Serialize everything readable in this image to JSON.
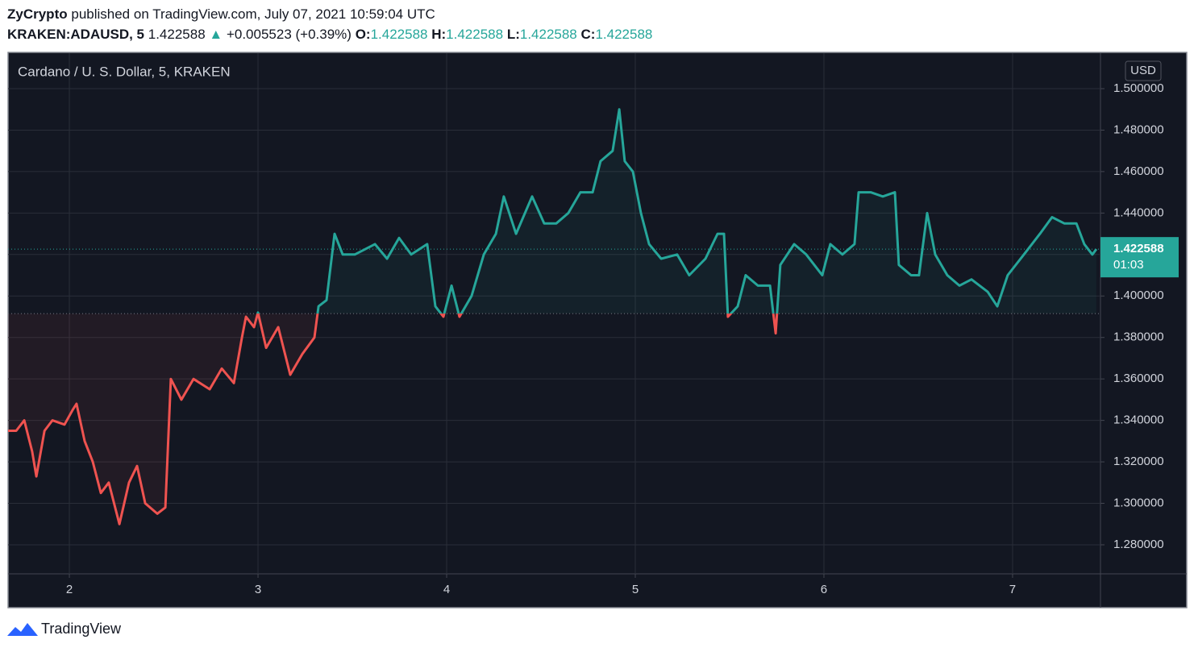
{
  "header": {
    "publisher": "ZyCrypto",
    "published": "published on TradingView.com, July 07, 2021 10:59:04 UTC",
    "symbol": "KRAKEN:ADAUSD, 5",
    "price": 1.422588,
    "change": "+0.005523 (+0.39%)",
    "ohlc": [
      {
        "label": "O:",
        "value": 1.422588
      },
      {
        "label": "H:",
        "value": 1.422588
      },
      {
        "label": "L:",
        "value": 1.422588
      },
      {
        "label": "C:",
        "value": 1.422588
      }
    ]
  },
  "footer": {
    "brand": "TradingView"
  },
  "chart_data": {
    "type": "line",
    "title": "Cardano / U. S. Dollar, 5, KRAKEN",
    "currency": "USD",
    "x": [
      1.675,
      1.718,
      1.761,
      1.803,
      1.825,
      1.868,
      1.91,
      1.974,
      2.017,
      2.038,
      2.081,
      2.124,
      2.167,
      2.209,
      2.265,
      2.316,
      2.359,
      2.402,
      2.466,
      2.509,
      2.538,
      2.594,
      2.658,
      2.744,
      2.808,
      2.872,
      2.915,
      2.936,
      2.979,
      3.0,
      3.043,
      3.107,
      3.171,
      3.235,
      3.299,
      3.321,
      3.363,
      3.406,
      3.449,
      3.513,
      3.62,
      3.684,
      3.748,
      3.812,
      3.897,
      3.94,
      3.983,
      4.026,
      4.068,
      4.132,
      4.197,
      4.261,
      4.303,
      4.368,
      4.453,
      4.517,
      4.581,
      4.645,
      4.709,
      4.774,
      4.816,
      4.88,
      4.915,
      4.944,
      4.987,
      5.03,
      5.073,
      5.137,
      5.222,
      5.286,
      5.372,
      5.436,
      5.47,
      5.491,
      5.543,
      5.585,
      5.65,
      5.714,
      5.744,
      5.769,
      5.842,
      5.906,
      5.991,
      6.034,
      6.098,
      6.162,
      6.184,
      6.248,
      6.312,
      6.376,
      6.397,
      6.462,
      6.504,
      6.547,
      6.59,
      6.654,
      6.718,
      6.782,
      6.868,
      6.919,
      6.974,
      7.06,
      7.145,
      7.209,
      7.274,
      7.338,
      7.38,
      7.423,
      7.444
    ],
    "values": [
      1.335,
      1.335,
      1.34,
      1.325,
      1.313,
      1.335,
      1.34,
      1.338,
      1.345,
      1.348,
      1.33,
      1.32,
      1.305,
      1.31,
      1.29,
      1.31,
      1.318,
      1.3,
      1.295,
      1.298,
      1.36,
      1.35,
      1.36,
      1.355,
      1.365,
      1.358,
      1.38,
      1.39,
      1.385,
      1.392,
      1.375,
      1.385,
      1.362,
      1.372,
      1.38,
      1.395,
      1.398,
      1.43,
      1.42,
      1.42,
      1.425,
      1.418,
      1.428,
      1.42,
      1.425,
      1.395,
      1.39,
      1.405,
      1.39,
      1.4,
      1.42,
      1.43,
      1.448,
      1.43,
      1.448,
      1.435,
      1.435,
      1.44,
      1.45,
      1.45,
      1.465,
      1.47,
      1.49,
      1.465,
      1.46,
      1.44,
      1.425,
      1.418,
      1.42,
      1.41,
      1.418,
      1.43,
      1.43,
      1.39,
      1.395,
      1.41,
      1.405,
      1.405,
      1.382,
      1.415,
      1.425,
      1.42,
      1.41,
      1.425,
      1.42,
      1.425,
      1.45,
      1.45,
      1.448,
      1.45,
      1.415,
      1.41,
      1.41,
      1.44,
      1.42,
      1.41,
      1.405,
      1.408,
      1.402,
      1.395,
      1.41,
      1.42,
      1.43,
      1.438,
      1.435,
      1.435,
      1.425,
      1.42,
      1.422588
    ],
    "color_up": "#26a69a",
    "color_down": "#ef5350",
    "baseline": 1.3915,
    "last_value": 1.422588,
    "countdown": "01:03",
    "xlim": [
      1.675,
      7.466
    ],
    "ylim": [
      1.266,
      1.5171
    ],
    "xticks": [
      2,
      3,
      4,
      5,
      6,
      7
    ],
    "yticks": [
      {
        "value": 1.28,
        "label": "1.280000"
      },
      {
        "value": 1.3,
        "label": "1.300000"
      },
      {
        "value": 1.32,
        "label": "1.320000"
      },
      {
        "value": 1.34,
        "label": "1.340000"
      },
      {
        "value": 1.36,
        "label": "1.360000"
      },
      {
        "value": 1.38,
        "label": "1.380000"
      },
      {
        "value": 1.4,
        "label": "1.400000"
      },
      {
        "value": 1.42,
        "label": "1.420000"
      },
      {
        "value": 1.44,
        "label": "1.440000"
      },
      {
        "value": 1.46,
        "label": "1.460000"
      },
      {
        "value": 1.48,
        "label": "1.480000"
      },
      {
        "value": 1.5,
        "label": "1.500000"
      }
    ],
    "grid": true
  }
}
